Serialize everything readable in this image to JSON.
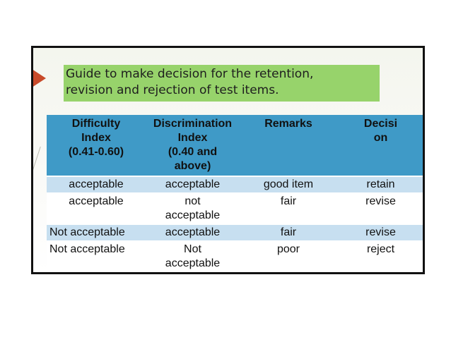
{
  "slide": {
    "title_line1": "Guide to make decision for the retention,",
    "title_line2": "revision and rejection of test items."
  },
  "table": {
    "headers": [
      [
        "Difficulty",
        "Index",
        "(0.41-0.60)"
      ],
      [
        "Discrimination",
        "Index",
        "(0.40 and above)"
      ],
      [
        "Remarks"
      ],
      [
        "Decisi",
        "on"
      ]
    ],
    "rows": [
      {
        "difficulty": "acceptable",
        "discrimination": "acceptable",
        "remarks": "good item",
        "decision": "retain"
      },
      {
        "difficulty": "acceptable",
        "discrimination": [
          "not",
          "acceptable"
        ],
        "remarks": "fair",
        "decision": "revise"
      },
      {
        "difficulty": "Not acceptable",
        "discrimination": "acceptable",
        "remarks": "fair",
        "decision": "revise"
      },
      {
        "difficulty": "Not acceptable",
        "discrimination": [
          "Not",
          "acceptable"
        ],
        "remarks": "poor",
        "decision": "reject"
      }
    ]
  },
  "colors": {
    "title_bg": "#97d36b",
    "header_bg": "#3f9ac7",
    "shaded_row_bg": "#c7dff0",
    "marker": "#c84a2a"
  }
}
